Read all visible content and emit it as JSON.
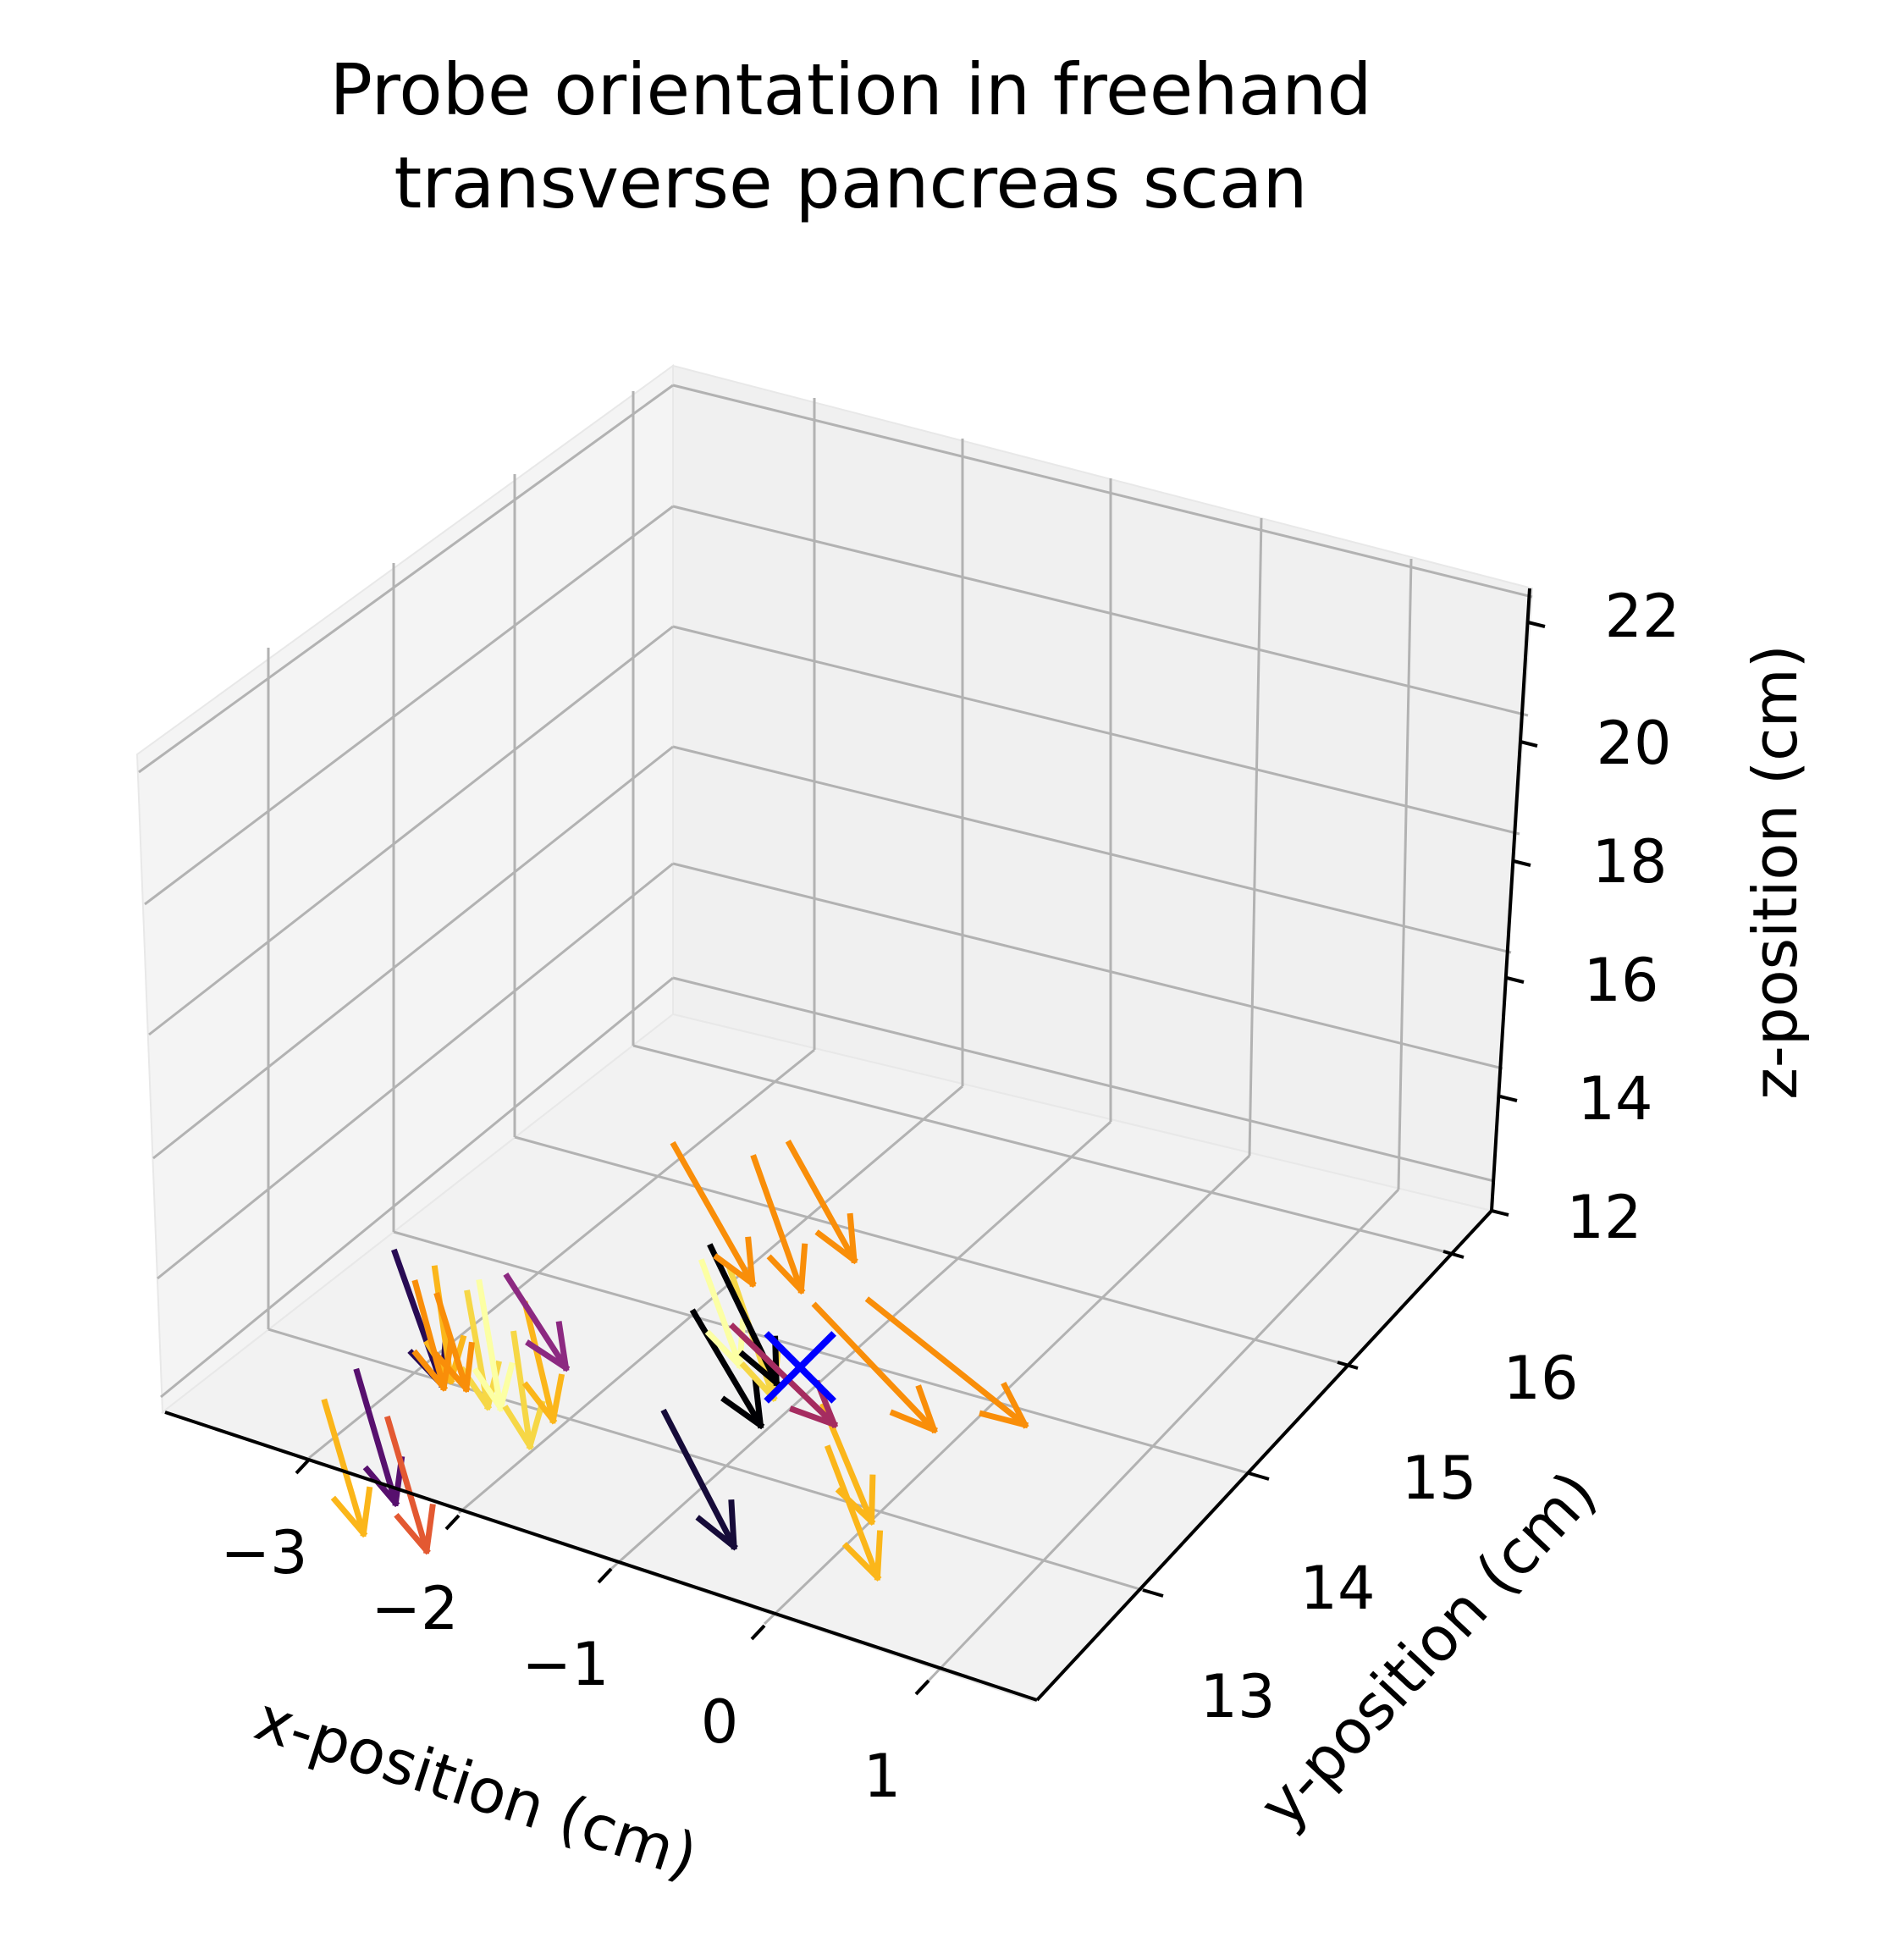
{
  "chart_data": {
    "type": "quiver3d",
    "title_lines": [
      "Probe orientation in freehand",
      "transverse pancreas scan"
    ],
    "xlabel": "x-position (cm)",
    "ylabel": "y-position (cm)",
    "zlabel": "z-position (cm)",
    "x_ticks": [
      "−3",
      "−2",
      "−1",
      "0",
      "1"
    ],
    "y_ticks": [
      "13",
      "14",
      "15",
      "16"
    ],
    "z_ticks": [
      "12",
      "14",
      "16",
      "18",
      "20",
      "22"
    ],
    "xlim": [
      -3.9,
      1.9
    ],
    "ylim": [
      12.5,
      16.5
    ],
    "zlim": [
      12,
      22
    ],
    "grid": true,
    "colormap": "inferno",
    "target_marker": {
      "symbol": "X",
      "color": "#0000ff"
    },
    "arrows": [
      {
        "color": "#fbb61a",
        "x0": -3.55,
        "y0": 12.8,
        "z0": 17.0,
        "dx": 0.28,
        "dy": -0.05,
        "dz": -2.0
      },
      {
        "color": "#57106e",
        "x0": -3.2,
        "y0": 13.0,
        "z0": 17.4,
        "dx": 0.28,
        "dy": -0.05,
        "dz": -2.0
      },
      {
        "color": "#e35932",
        "x0": -3.05,
        "y0": 12.9,
        "z0": 16.9,
        "dx": 0.28,
        "dy": -0.05,
        "dz": -2.0
      },
      {
        "color": "#280b54",
        "x0": -1.95,
        "y0": 14.4,
        "z0": 17.6,
        "dx": 0.3,
        "dy": -0.1,
        "dz": -1.9
      },
      {
        "color": "#fbb61a",
        "x0": -1.6,
        "y0": 14.5,
        "z0": 17.4,
        "dx": 0.12,
        "dy": -0.05,
        "dz": -1.8
      },
      {
        "color": "#f98e09",
        "x0": -1.65,
        "y0": 14.6,
        "z0": 16.9,
        "dx": 0.2,
        "dy": -0.05,
        "dz": -1.6
      },
      {
        "color": "#f6d746",
        "x0": -1.45,
        "y0": 14.4,
        "z0": 17.3,
        "dx": 0.15,
        "dy": -0.05,
        "dz": -1.8
      },
      {
        "color": "#fcffa4",
        "x0": -1.3,
        "y0": 14.5,
        "z0": 17.4,
        "dx": 0.16,
        "dy": -0.05,
        "dz": -2.0
      },
      {
        "color": "#f98e09",
        "x0": -1.5,
        "y0": 14.6,
        "z0": 16.8,
        "dx": 0.2,
        "dy": -0.05,
        "dz": -1.4
      },
      {
        "color": "#f6d746",
        "x0": -1.2,
        "y0": 14.3,
        "z0": 17.0,
        "dx": 0.12,
        "dy": -0.05,
        "dz": -1.8
      },
      {
        "color": "#fbb61a",
        "x0": -0.95,
        "y0": 14.55,
        "z0": 17.2,
        "dx": 0.2,
        "dy": -0.05,
        "dz": -1.8
      },
      {
        "color": "#8c2981",
        "x0": -0.9,
        "y0": 14.8,
        "z0": 17.2,
        "dx": 0.4,
        "dy": -0.05,
        "dz": -1.2
      },
      {
        "color": "#160b39",
        "x0": -0.25,
        "y0": 14.2,
        "z0": 16.6,
        "dx": 0.45,
        "dy": -0.1,
        "dz": -1.8
      },
      {
        "color": "#000004",
        "x0": 0.5,
        "y0": 15.0,
        "z0": 17.3,
        "dx": 0.5,
        "dy": 0.0,
        "dz": -1.6
      },
      {
        "color": "#fcffa4",
        "x0": 0.8,
        "y0": 15.35,
        "z0": 17.7,
        "dx": 0.3,
        "dy": 0.0,
        "dz": -1.6
      },
      {
        "color": "#f6d746",
        "x0": 0.95,
        "y0": 15.3,
        "z0": 17.8,
        "dx": 0.35,
        "dy": 0.0,
        "dz": -2.0
      },
      {
        "color": "#000004",
        "x0": 0.85,
        "y0": 15.35,
        "z0": 18.0,
        "dx": 0.5,
        "dy": 0.0,
        "dz": -2.0
      },
      {
        "color": "#fbb61a",
        "x0": 1.4,
        "y0": 15.0,
        "z0": 16.4,
        "dx": 0.3,
        "dy": -0.1,
        "dz": -1.6
      },
      {
        "color": "#fbb61a",
        "x0": 1.3,
        "y0": 14.8,
        "z0": 16.0,
        "dx": 0.35,
        "dy": -0.05,
        "dz": -1.9
      },
      {
        "color": "#a52c60",
        "x0": 1.1,
        "y0": 15.45,
        "z0": 16.6,
        "dx": 0.65,
        "dy": -0.1,
        "dz": -1.0
      },
      {
        "color": "#f98e09",
        "x0": 1.2,
        "y0": 16.2,
        "z0": 18.3,
        "dx": 0.55,
        "dy": -0.05,
        "dz": -1.9
      },
      {
        "color": "#f98e09",
        "x0": 1.85,
        "y0": 16.35,
        "z0": 18.3,
        "dx": 0.3,
        "dy": -0.1,
        "dz": -1.9
      },
      {
        "color": "#f98e09",
        "x0": 2.45,
        "y0": 16.85,
        "z0": 18.0,
        "dx": 0.45,
        "dy": -0.05,
        "dz": -1.6
      },
      {
        "color": "#f98e09",
        "x0": 2.05,
        "y0": 16.0,
        "z0": 16.6,
        "dx": 0.85,
        "dy": 0.0,
        "dz": -1.5
      },
      {
        "color": "#f98e09",
        "x0": 2.85,
        "y0": 16.6,
        "z0": 16.1,
        "dx": 1.1,
        "dy": 0.0,
        "dz": -1.3
      }
    ],
    "target": {
      "x": 1.65,
      "y": 15.55,
      "z": 16.1
    }
  }
}
